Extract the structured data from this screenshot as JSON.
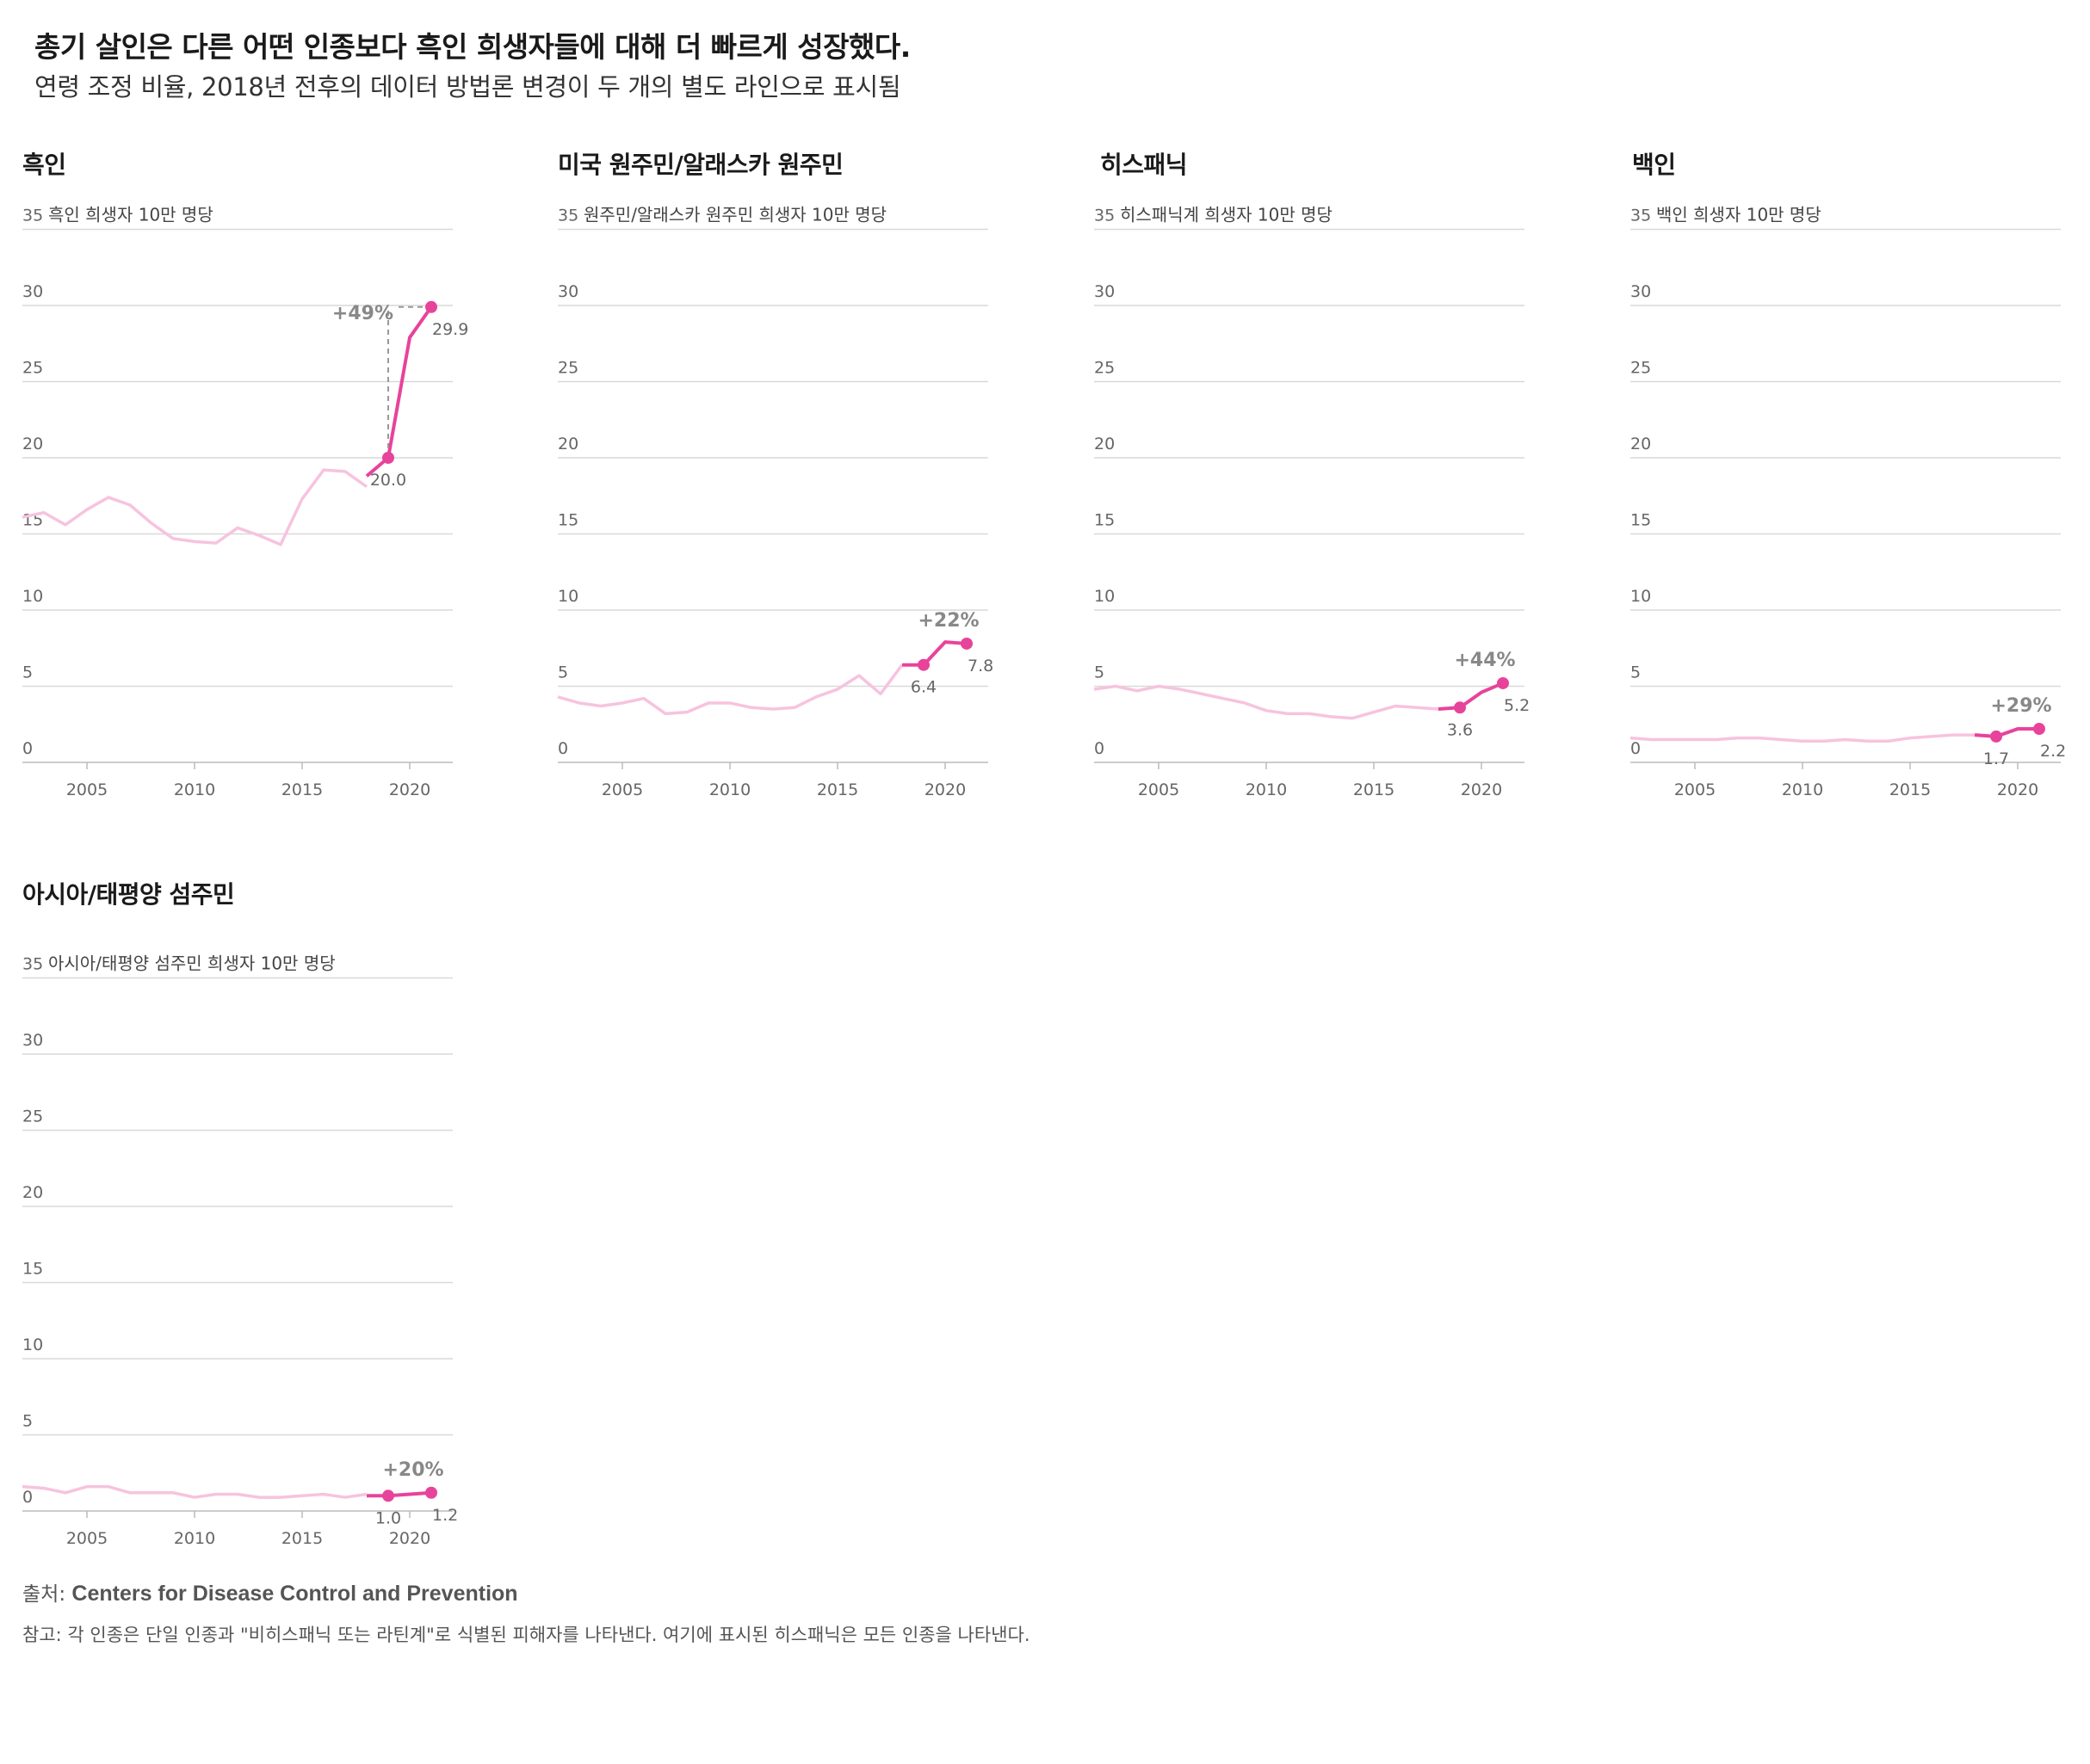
{
  "headline": "총기 살인은 다른 어떤 인종보다 흑인 희생자들에 대해 더 빠르게 성장했다.",
  "subtitle": "연령 조정 비율, 2018년 전후의 데이터 방법론 변경이 두 개의 별도 라인으로 표시됨",
  "colors": {
    "old_series": "#f7c3df",
    "new_series": "#e8439b",
    "grid": "#d9d9d9",
    "axis_text": "#666666",
    "annotation": "#888888"
  },
  "chart_data": [
    {
      "type": "line",
      "title": "흑인",
      "ylabel": "흑인 희생자 10만 명당",
      "ylim": [
        0,
        35
      ],
      "yticks": [
        "0",
        "5",
        "10",
        "15",
        "20",
        "25",
        "30",
        "35"
      ],
      "xticks": [
        "2005",
        "2010",
        "2015",
        "2020"
      ],
      "xlim": [
        2002,
        2022
      ],
      "series_old": {
        "x": [
          2002,
          2003,
          2004,
          2005,
          2006,
          2007,
          2008,
          2009,
          2010,
          2011,
          2012,
          2013,
          2014,
          2015,
          2016,
          2017,
          2018
        ],
        "y": [
          16.1,
          16.4,
          15.6,
          16.6,
          17.4,
          16.9,
          15.7,
          14.7,
          14.5,
          14.4,
          15.4,
          14.9,
          14.3,
          17.3,
          19.2,
          19.1,
          18.1
        ]
      },
      "series_new": {
        "x": [
          2018,
          2019,
          2020,
          2021
        ],
        "y": [
          18.8,
          20.0,
          27.9,
          29.9
        ]
      },
      "start_label": "20.0",
      "end_label": "29.9",
      "change_label": "+49%",
      "change_style": "bracket"
    },
    {
      "type": "line",
      "title": "미국 원주민/알래스카 원주민",
      "ylabel": "원주민/알래스카 원주민 희생자 10만 명당",
      "ylim": [
        0,
        35
      ],
      "yticks": [
        "0",
        "5",
        "10",
        "15",
        "20",
        "25",
        "30",
        "35"
      ],
      "xticks": [
        "2005",
        "2010",
        "2015",
        "2020"
      ],
      "xlim": [
        2002,
        2022
      ],
      "series_old": {
        "x": [
          2002,
          2003,
          2004,
          2005,
          2006,
          2007,
          2008,
          2009,
          2010,
          2011,
          2012,
          2013,
          2014,
          2015,
          2016,
          2017,
          2018
        ],
        "y": [
          4.3,
          3.9,
          3.7,
          3.9,
          4.2,
          3.2,
          3.3,
          3.9,
          3.9,
          3.6,
          3.5,
          3.6,
          4.3,
          4.8,
          5.7,
          4.5,
          6.4
        ]
      },
      "series_new": {
        "x": [
          2018,
          2019,
          2020,
          2021
        ],
        "y": [
          6.4,
          6.4,
          7.9,
          7.8
        ]
      },
      "start_label": "6.4",
      "end_label": "7.8",
      "change_label": "+22%",
      "change_style": "above"
    },
    {
      "type": "line",
      "title": "히스패닉",
      "ylabel": "히스패닉계 희생자 10만 명당",
      "ylim": [
        0,
        35
      ],
      "yticks": [
        "0",
        "5",
        "10",
        "15",
        "20",
        "25",
        "30",
        "35"
      ],
      "xticks": [
        "2005",
        "2010",
        "2015",
        "2020"
      ],
      "xlim": [
        2002,
        2022
      ],
      "series_old": {
        "x": [
          2002,
          2003,
          2004,
          2005,
          2006,
          2007,
          2008,
          2009,
          2010,
          2011,
          2012,
          2013,
          2014,
          2015,
          2016,
          2017,
          2018
        ],
        "y": [
          4.8,
          5.0,
          4.7,
          5.0,
          4.8,
          4.5,
          4.2,
          3.9,
          3.4,
          3.2,
          3.2,
          3.0,
          2.9,
          3.3,
          3.7,
          3.6,
          3.5
        ]
      },
      "series_new": {
        "x": [
          2018,
          2019,
          2020,
          2021
        ],
        "y": [
          3.5,
          3.6,
          4.6,
          5.2
        ]
      },
      "start_label": "3.6",
      "end_label": "5.2",
      "change_label": "+44%",
      "change_style": "above"
    },
    {
      "type": "line",
      "title": "백인",
      "ylabel": "백인 희생자 10만 명당",
      "ylim": [
        0,
        35
      ],
      "yticks": [
        "0",
        "5",
        "10",
        "15",
        "20",
        "25",
        "30",
        "35"
      ],
      "xticks": [
        "2005",
        "2010",
        "2015",
        "2020"
      ],
      "xlim": [
        2002,
        2022
      ],
      "series_old": {
        "x": [
          2002,
          2003,
          2004,
          2005,
          2006,
          2007,
          2008,
          2009,
          2010,
          2011,
          2012,
          2013,
          2014,
          2015,
          2016,
          2017,
          2018
        ],
        "y": [
          1.6,
          1.5,
          1.5,
          1.5,
          1.5,
          1.6,
          1.6,
          1.5,
          1.4,
          1.4,
          1.5,
          1.4,
          1.4,
          1.6,
          1.7,
          1.8,
          1.8
        ]
      },
      "series_new": {
        "x": [
          2018,
          2019,
          2020,
          2021
        ],
        "y": [
          1.8,
          1.7,
          2.2,
          2.2
        ]
      },
      "start_label": "1.7",
      "end_label": "2.2",
      "change_label": "+29%",
      "change_style": "above"
    },
    {
      "type": "line",
      "title": "아시아/태평양 섬주민",
      "ylabel": "아시아/태평양 섬주민 희생자 10만 명당",
      "ylim": [
        0,
        35
      ],
      "yticks": [
        "0",
        "5",
        "10",
        "15",
        "20",
        "25",
        "30",
        "35"
      ],
      "xticks": [
        "2005",
        "2010",
        "2015",
        "2020"
      ],
      "xlim": [
        2002,
        2022
      ],
      "series_old": {
        "x": [
          2002,
          2003,
          2004,
          2005,
          2006,
          2007,
          2008,
          2009,
          2010,
          2011,
          2012,
          2013,
          2014,
          2015,
          2016,
          2017,
          2018
        ],
        "y": [
          1.6,
          1.5,
          1.2,
          1.6,
          1.6,
          1.2,
          1.2,
          1.2,
          0.9,
          1.1,
          1.1,
          0.9,
          0.9,
          1.0,
          1.1,
          0.9,
          1.1
        ]
      },
      "series_new": {
        "x": [
          2018,
          2019,
          2020,
          2021
        ],
        "y": [
          1.0,
          1.0,
          1.1,
          1.2
        ]
      },
      "start_label": "1.0",
      "end_label": "1.2",
      "change_label": "+20%",
      "change_style": "above"
    }
  ],
  "source_prefix": "출처: ",
  "source_org": "Centers for Disease Control and Prevention",
  "note": "참고: 각 인종은 단일 인종과 \"비히스패닉 또는 라틴계\"로 식별된 피해자를 나타낸다. 여기에 표시된 히스패닉은 모든 인종을 나타낸다."
}
